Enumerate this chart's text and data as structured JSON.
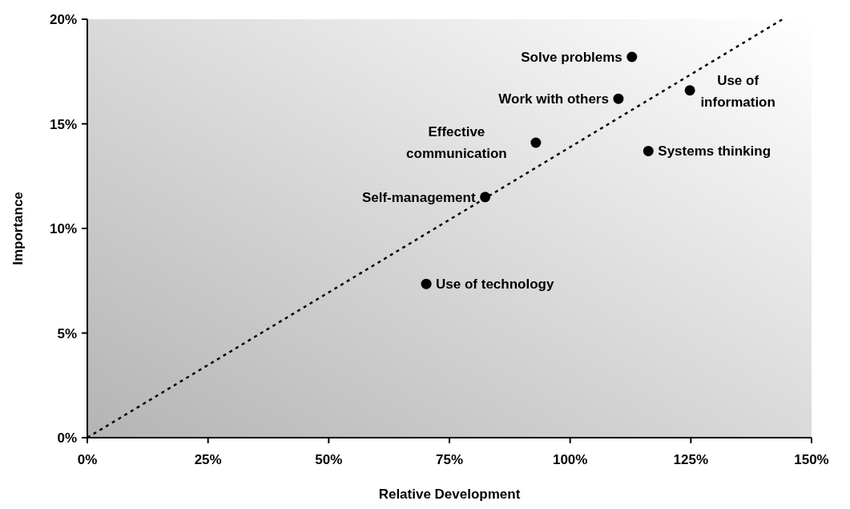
{
  "chart_data": {
    "type": "scatter",
    "xlabel": "Relative Development",
    "ylabel": "Importance",
    "xlim": [
      0,
      150
    ],
    "ylim": [
      0,
      20
    ],
    "xticks": [
      {
        "value": 0,
        "label": "0%"
      },
      {
        "value": 25,
        "label": "25%"
      },
      {
        "value": 50,
        "label": "50%"
      },
      {
        "value": 75,
        "label": "75%"
      },
      {
        "value": 100,
        "label": "100%"
      },
      {
        "value": 125,
        "label": "125%"
      },
      {
        "value": 150,
        "label": "150%"
      }
    ],
    "yticks": [
      {
        "value": 0,
        "label": "0%"
      },
      {
        "value": 5,
        "label": "5%"
      },
      {
        "value": 10,
        "label": "10%"
      },
      {
        "value": 15,
        "label": "15%"
      },
      {
        "value": 20,
        "label": "20%"
      }
    ],
    "grid": false,
    "legend": false,
    "marker": "circle",
    "series": [
      {
        "name": "Solve problems",
        "color": "#000000",
        "x": [
          112.8
        ],
        "values": [
          18.2
        ]
      },
      {
        "name": "Work with others",
        "color": "#000000",
        "x": [
          110.0
        ],
        "values": [
          16.2
        ]
      },
      {
        "name": "Use of information",
        "color": "#000000",
        "x": [
          124.8
        ],
        "values": [
          16.6
        ]
      },
      {
        "name": "Effective communication",
        "color": "#000000",
        "x": [
          92.9
        ],
        "values": [
          14.1
        ]
      },
      {
        "name": "Systems thinking",
        "color": "#000000",
        "x": [
          116.2
        ],
        "values": [
          13.7
        ]
      },
      {
        "name": "Self-management",
        "color": "#000000",
        "x": [
          82.4
        ],
        "values": [
          11.5
        ]
      },
      {
        "name": "Use of technology",
        "color": "#000000",
        "x": [
          70.2
        ],
        "values": [
          7.35
        ]
      },
      {
        "type": "line",
        "color": "#000000",
        "x": [
          0,
          144
        ],
        "values": [
          0,
          20
        ],
        "line_style": "dotted",
        "marker": "none"
      }
    ]
  }
}
